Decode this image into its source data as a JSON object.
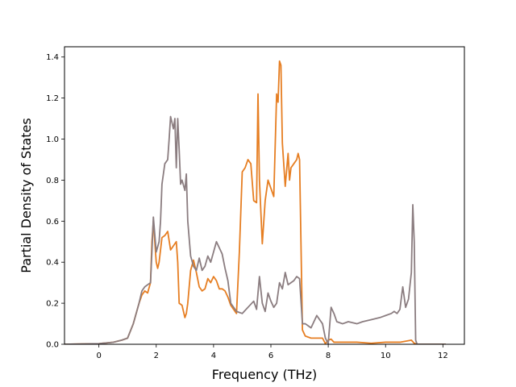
{
  "chart_data": {
    "type": "line",
    "title": "",
    "xlabel": "Frequency (THz)",
    "ylabel": "Partial Density of States",
    "xlim": [
      -1.2,
      12.75
    ],
    "ylim": [
      0,
      1.45
    ],
    "xticks": [
      0,
      2,
      4,
      6,
      8,
      10,
      12
    ],
    "yticks": [
      0.0,
      0.2,
      0.4,
      0.6,
      0.8,
      1.0,
      1.2,
      1.4
    ],
    "xtick_labels": [
      "0",
      "2",
      "4",
      "6",
      "8",
      "10",
      "12"
    ],
    "ytick_labels": [
      "0.0",
      "0.2",
      "0.4",
      "0.6",
      "0.8",
      "1.0",
      "1.2",
      "1.4"
    ],
    "grid": false,
    "legend": "none",
    "series": [
      {
        "color": "#e67e22",
        "x": [
          -1.2,
          0,
          0.5,
          0.8,
          1.0,
          1.2,
          1.4,
          1.5,
          1.6,
          1.7,
          1.8,
          1.85,
          1.9,
          2.0,
          2.05,
          2.1,
          2.2,
          2.3,
          2.4,
          2.5,
          2.6,
          2.7,
          2.75,
          2.8,
          2.9,
          3.0,
          3.05,
          3.1,
          3.2,
          3.3,
          3.4,
          3.5,
          3.6,
          3.7,
          3.8,
          3.9,
          4.0,
          4.1,
          4.2,
          4.3,
          4.4,
          4.5,
          4.6,
          4.7,
          4.8,
          4.9,
          5.0,
          5.1,
          5.2,
          5.3,
          5.4,
          5.5,
          5.55,
          5.6,
          5.7,
          5.8,
          5.9,
          6.0,
          6.1,
          6.2,
          6.25,
          6.3,
          6.35,
          6.4,
          6.5,
          6.6,
          6.65,
          6.7,
          6.8,
          6.9,
          6.95,
          7.0,
          7.1,
          7.2,
          7.4,
          7.6,
          7.8,
          7.9,
          8.0,
          8.1,
          8.2,
          8.5,
          9.0,
          9.5,
          10.0,
          10.5,
          10.9,
          11.0,
          11.1,
          12.1
        ],
        "y": [
          0,
          0.003,
          0.01,
          0.02,
          0.03,
          0.1,
          0.2,
          0.24,
          0.26,
          0.25,
          0.3,
          0.5,
          0.6,
          0.4,
          0.37,
          0.4,
          0.52,
          0.53,
          0.55,
          0.46,
          0.48,
          0.5,
          0.4,
          0.2,
          0.19,
          0.13,
          0.15,
          0.2,
          0.36,
          0.41,
          0.35,
          0.28,
          0.26,
          0.27,
          0.32,
          0.3,
          0.33,
          0.31,
          0.27,
          0.27,
          0.26,
          0.23,
          0.19,
          0.17,
          0.15,
          0.45,
          0.84,
          0.86,
          0.9,
          0.88,
          0.7,
          0.69,
          1.22,
          0.8,
          0.49,
          0.7,
          0.8,
          0.76,
          0.72,
          1.22,
          1.18,
          1.38,
          1.36,
          0.98,
          0.77,
          0.93,
          0.8,
          0.86,
          0.88,
          0.9,
          0.93,
          0.9,
          0.07,
          0.04,
          0.03,
          0.03,
          0.03,
          0.003,
          0.02,
          0.025,
          0.01,
          0.01,
          0.01,
          0.005,
          0.01,
          0.01,
          0.02,
          0.005,
          0,
          0
        ]
      },
      {
        "color": "#8b7d80",
        "x": [
          -1.2,
          0,
          0.5,
          0.8,
          1.0,
          1.2,
          1.4,
          1.5,
          1.6,
          1.7,
          1.8,
          1.85,
          1.9,
          2.0,
          2.1,
          2.15,
          2.2,
          2.3,
          2.4,
          2.45,
          2.5,
          2.6,
          2.65,
          2.7,
          2.75,
          2.8,
          2.85,
          2.9,
          3.0,
          3.05,
          3.1,
          3.2,
          3.3,
          3.4,
          3.5,
          3.6,
          3.7,
          3.8,
          3.9,
          4.0,
          4.1,
          4.2,
          4.3,
          4.4,
          4.5,
          4.6,
          4.8,
          5.0,
          5.2,
          5.4,
          5.5,
          5.6,
          5.7,
          5.8,
          5.9,
          6.0,
          6.1,
          6.2,
          6.3,
          6.4,
          6.5,
          6.6,
          6.7,
          6.8,
          6.9,
          7.0,
          7.1,
          7.2,
          7.4,
          7.6,
          7.8,
          7.9,
          8.0,
          8.1,
          8.2,
          8.3,
          8.5,
          8.7,
          9.0,
          9.2,
          9.5,
          9.8,
          10.0,
          10.2,
          10.3,
          10.4,
          10.5,
          10.6,
          10.7,
          10.8,
          10.9,
          10.95,
          11.0,
          11.05,
          11.1,
          12.1
        ],
        "y": [
          0,
          0.003,
          0.01,
          0.02,
          0.03,
          0.1,
          0.2,
          0.26,
          0.28,
          0.29,
          0.3,
          0.45,
          0.62,
          0.45,
          0.5,
          0.6,
          0.78,
          0.88,
          0.9,
          1.0,
          1.11,
          1.05,
          1.1,
          0.86,
          1.1,
          0.95,
          0.78,
          0.8,
          0.75,
          0.83,
          0.6,
          0.43,
          0.38,
          0.36,
          0.42,
          0.36,
          0.38,
          0.43,
          0.4,
          0.45,
          0.5,
          0.47,
          0.44,
          0.37,
          0.31,
          0.2,
          0.16,
          0.15,
          0.18,
          0.21,
          0.17,
          0.33,
          0.2,
          0.16,
          0.25,
          0.21,
          0.18,
          0.2,
          0.3,
          0.27,
          0.35,
          0.29,
          0.3,
          0.31,
          0.33,
          0.32,
          0.1,
          0.1,
          0.08,
          0.14,
          0.1,
          0.03,
          0.003,
          0.18,
          0.15,
          0.11,
          0.1,
          0.11,
          0.1,
          0.11,
          0.12,
          0.13,
          0.14,
          0.15,
          0.16,
          0.15,
          0.17,
          0.28,
          0.18,
          0.22,
          0.35,
          0.68,
          0.5,
          0.02,
          0,
          0
        ]
      }
    ]
  }
}
